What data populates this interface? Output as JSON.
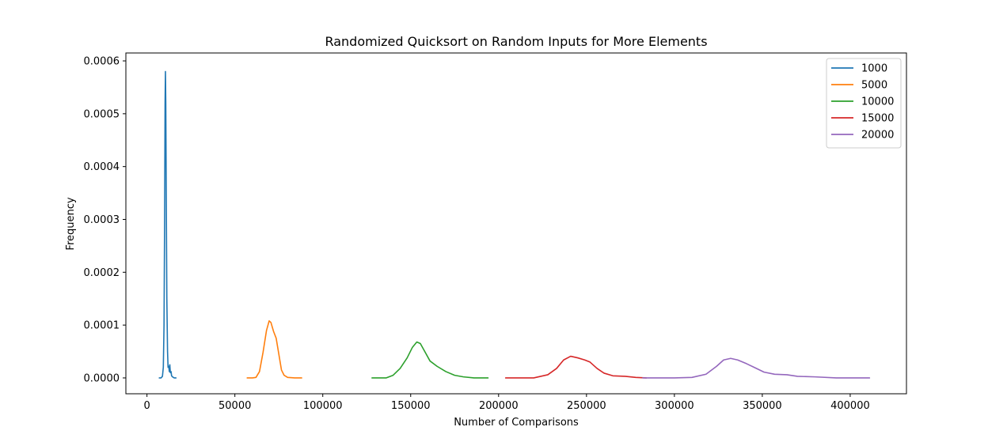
{
  "chart_data": {
    "type": "line",
    "title": "Randomized Quicksort on Random Inputs for More Elements",
    "xlabel": "Number of Comparisons",
    "ylabel": "Frequency",
    "xlim": [
      -12000,
      432000
    ],
    "ylim": [
      -3e-05,
      0.000615
    ],
    "xticks": [
      0,
      50000,
      100000,
      150000,
      200000,
      250000,
      300000,
      350000,
      400000
    ],
    "xtick_labels": [
      "0",
      "50000",
      "100000",
      "150000",
      "200000",
      "250000",
      "300000",
      "350000",
      "400000"
    ],
    "yticks": [
      0,
      0.0001,
      0.0002,
      0.0003,
      0.0004,
      0.0005,
      0.0006
    ],
    "ytick_labels": [
      "0.0000",
      "0.0001",
      "0.0002",
      "0.0003",
      "0.0004",
      "0.0005",
      "0.0006"
    ],
    "grid": false,
    "legend_position": "top-right",
    "series": [
      {
        "name": "1000",
        "color": "#1f77b4",
        "points": [
          [
            7000,
            0
          ],
          [
            8000,
            0
          ],
          [
            8800,
            3e-06
          ],
          [
            9300,
            2e-05
          ],
          [
            9700,
            0.0001
          ],
          [
            10000,
            0.00028
          ],
          [
            10300,
            0.00052
          ],
          [
            10500,
            0.00058
          ],
          [
            10700,
            0.00052
          ],
          [
            11000,
            0.00033
          ],
          [
            11300,
            0.00015
          ],
          [
            11700,
            5e-05
          ],
          [
            12000,
            2e-05
          ],
          [
            12400,
            2.2e-05
          ],
          [
            12700,
            1.2e-05
          ],
          [
            13000,
            2.5e-05
          ],
          [
            13300,
            1e-05
          ],
          [
            13700,
            1.2e-05
          ],
          [
            14000,
            4e-06
          ],
          [
            14500,
            2e-06
          ],
          [
            15500,
            0
          ],
          [
            16500,
            0
          ]
        ]
      },
      {
        "name": "5000",
        "color": "#ff7f0e",
        "points": [
          [
            57000,
            0
          ],
          [
            60000,
            0
          ],
          [
            62000,
            1e-06
          ],
          [
            64000,
            1.2e-05
          ],
          [
            66000,
            4.8e-05
          ],
          [
            68000,
            9e-05
          ],
          [
            69500,
            0.000108
          ],
          [
            70500,
            0.000105
          ],
          [
            72000,
            8.8e-05
          ],
          [
            73500,
            7.5e-05
          ],
          [
            75000,
            4.5e-05
          ],
          [
            76500,
            1.5e-05
          ],
          [
            78000,
            5e-06
          ],
          [
            80000,
            1e-06
          ],
          [
            84000,
            0
          ],
          [
            88000,
            0
          ]
        ]
      },
      {
        "name": "10000",
        "color": "#2ca02c",
        "points": [
          [
            128000,
            0
          ],
          [
            136000,
            0
          ],
          [
            140000,
            5e-06
          ],
          [
            144000,
            1.8e-05
          ],
          [
            148000,
            3.8e-05
          ],
          [
            151000,
            5.8e-05
          ],
          [
            153500,
            6.8e-05
          ],
          [
            155500,
            6.5e-05
          ],
          [
            158000,
            5e-05
          ],
          [
            161000,
            3.2e-05
          ],
          [
            165000,
            2.2e-05
          ],
          [
            170000,
            1.2e-05
          ],
          [
            175000,
            5e-06
          ],
          [
            180000,
            2e-06
          ],
          [
            186000,
            0
          ],
          [
            194000,
            0
          ]
        ]
      },
      {
        "name": "15000",
        "color": "#d62728",
        "points": [
          [
            204000,
            0
          ],
          [
            220000,
            0
          ],
          [
            228000,
            6e-06
          ],
          [
            233000,
            1.8e-05
          ],
          [
            237000,
            3.4e-05
          ],
          [
            241000,
            4.1e-05
          ],
          [
            245000,
            3.8e-05
          ],
          [
            249000,
            3.4e-05
          ],
          [
            252000,
            3e-05
          ],
          [
            256000,
            1.8e-05
          ],
          [
            260000,
            9e-06
          ],
          [
            265000,
            4e-06
          ],
          [
            272000,
            3e-06
          ],
          [
            278000,
            1e-06
          ],
          [
            284000,
            0
          ]
        ]
      },
      {
        "name": "20000",
        "color": "#9467bd",
        "points": [
          [
            282000,
            0
          ],
          [
            300000,
            0
          ],
          [
            310000,
            1e-06
          ],
          [
            318000,
            7e-06
          ],
          [
            324000,
            2.2e-05
          ],
          [
            328000,
            3.4e-05
          ],
          [
            332000,
            3.7e-05
          ],
          [
            336000,
            3.4e-05
          ],
          [
            341000,
            2.7e-05
          ],
          [
            346000,
            1.9e-05
          ],
          [
            351000,
            1.1e-05
          ],
          [
            357000,
            7e-06
          ],
          [
            364000,
            6e-06
          ],
          [
            370000,
            3e-06
          ],
          [
            380000,
            2e-06
          ],
          [
            392000,
            0
          ],
          [
            411000,
            0
          ]
        ]
      }
    ]
  }
}
